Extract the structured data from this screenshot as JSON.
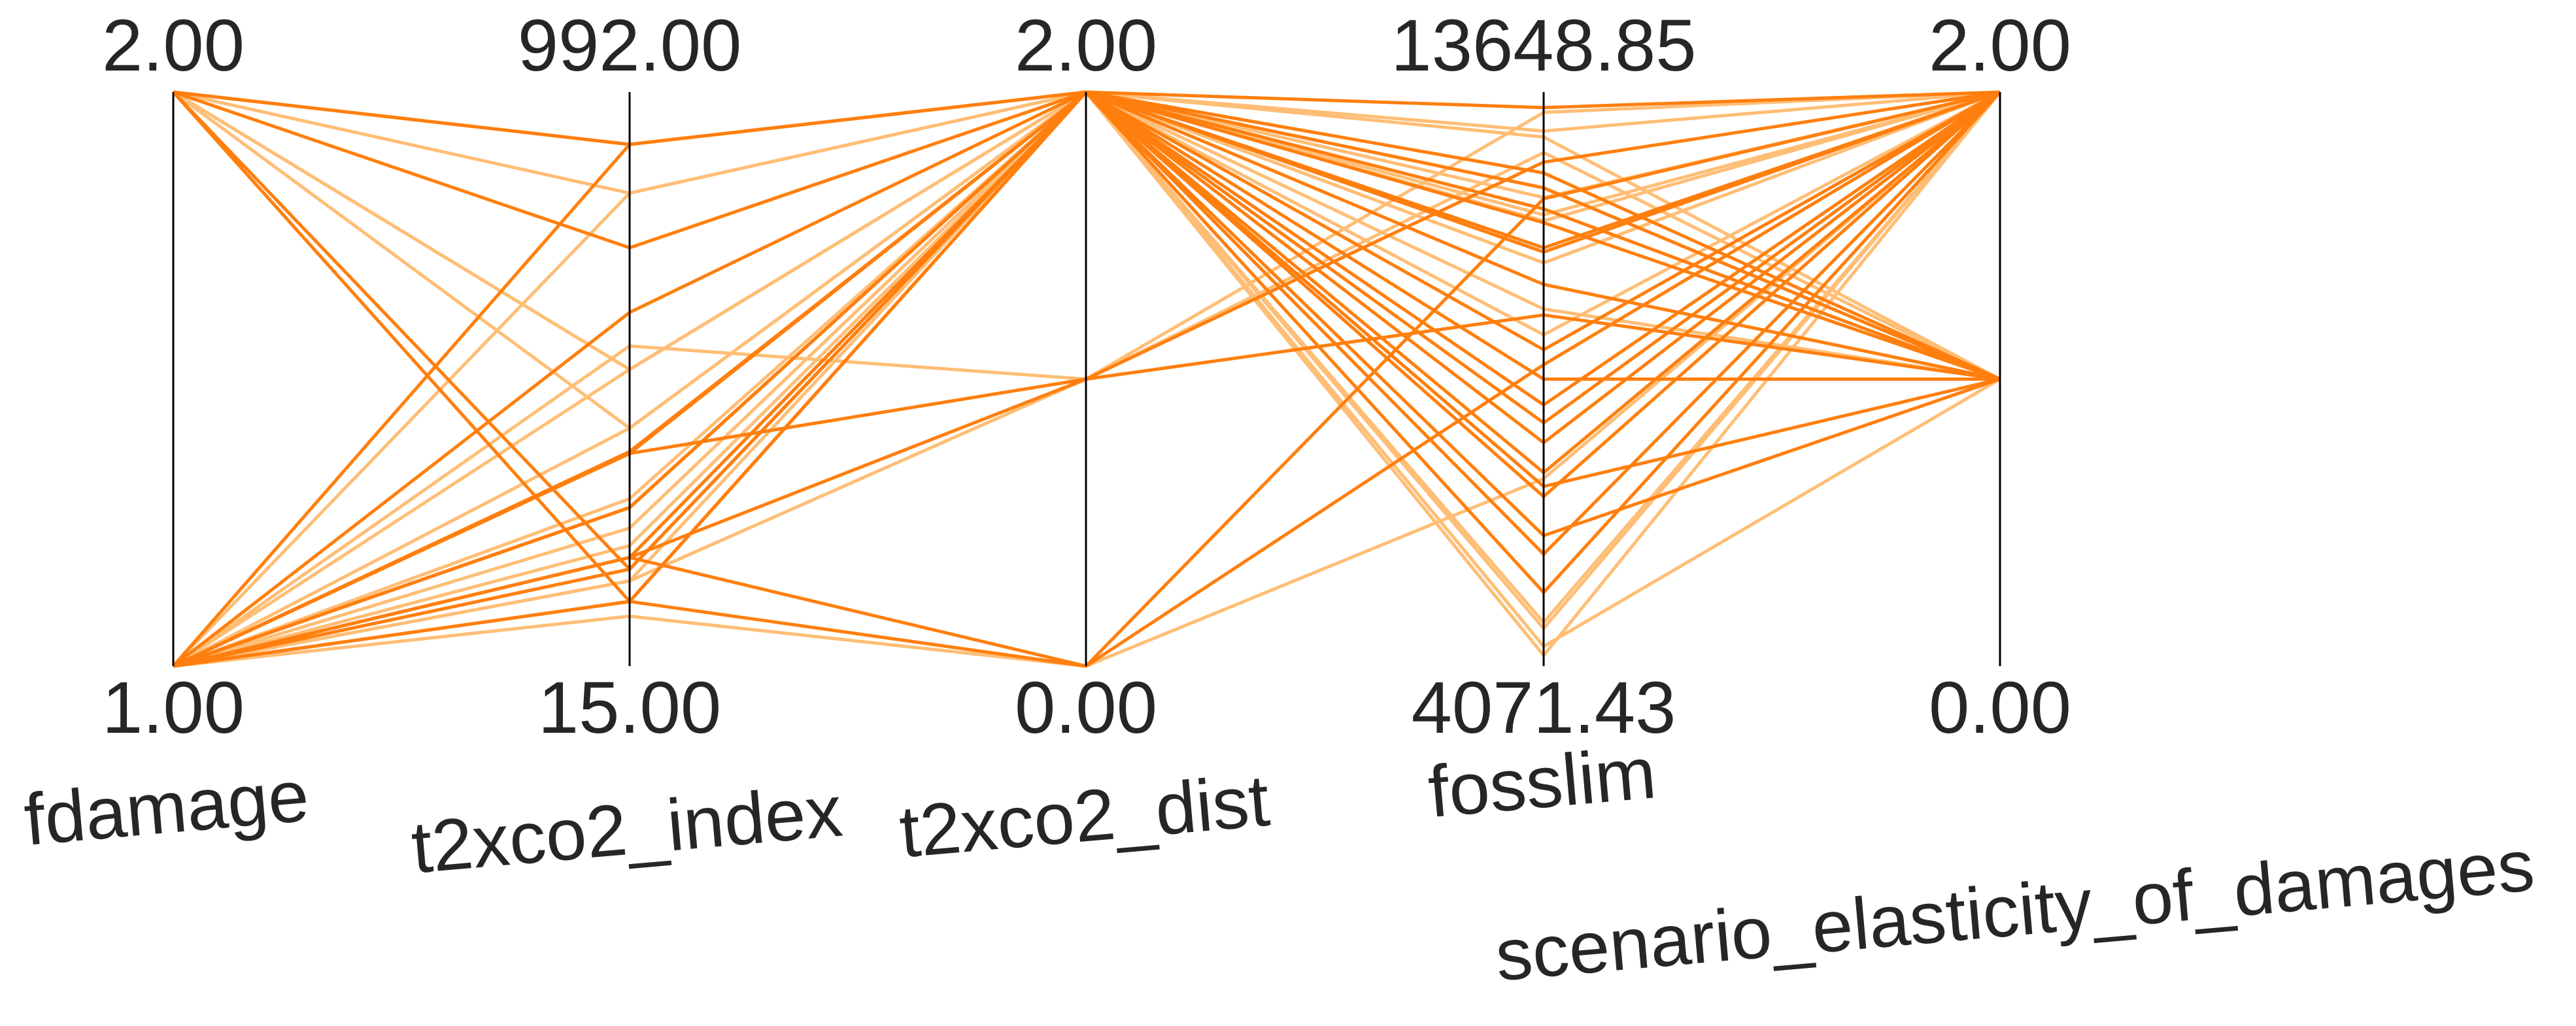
{
  "chart_data": {
    "type": "parallel_coordinates",
    "title": "",
    "axes": [
      {
        "name": "fdamage",
        "max": 2.0,
        "min": 1.0,
        "max_label": "2.00",
        "min_label": "1.00"
      },
      {
        "name": "t2xco2_index",
        "max": 992.0,
        "min": 15.0,
        "max_label": "992.00",
        "min_label": "15.00"
      },
      {
        "name": "t2xco2_dist",
        "max": 2.0,
        "min": 0.0,
        "max_label": "2.00",
        "min_label": "0.00"
      },
      {
        "name": "fosslim",
        "max": 13648.85,
        "min": 4071.43,
        "max_label": "13648.85",
        "min_label": "4071.43"
      },
      {
        "name": "scenario_elasticity_of_damages",
        "max": 2.0,
        "min": 0.0,
        "max_label": "2.00",
        "min_label": "0.00"
      }
    ],
    "colors": {
      "dark": "#ff7f0e",
      "light": "#ffbe76",
      "axis": "#000000",
      "text": "#262626"
    },
    "series": [
      {
        "shade": "dark",
        "values": [
          2,
          903,
          2,
          13390,
          2
        ]
      },
      {
        "shade": "dark",
        "values": [
          2,
          727,
          2,
          12050,
          1
        ]
      },
      {
        "shade": "dark",
        "values": [
          2,
          180,
          2,
          11700,
          1
        ]
      },
      {
        "shade": "dark",
        "values": [
          2,
          125,
          0,
          9100,
          2
        ]
      },
      {
        "shade": "dark",
        "values": [
          1,
          903,
          2,
          11050,
          2
        ]
      },
      {
        "shade": "dark",
        "values": [
          1,
          617,
          2,
          11470,
          1
        ]
      },
      {
        "shade": "dark",
        "values": [
          1,
          377,
          2,
          10980,
          2
        ]
      },
      {
        "shade": "dark",
        "values": [
          1,
          285,
          2,
          10440,
          1
        ]
      },
      {
        "shade": "dark",
        "values": [
          1,
          200,
          1,
          12480,
          2
        ]
      },
      {
        "shade": "dark",
        "values": [
          1,
          380,
          2,
          8860,
          1
        ]
      },
      {
        "shade": "dark",
        "values": [
          1,
          285,
          2,
          8430,
          2
        ]
      },
      {
        "shade": "dark",
        "values": [
          1,
          200,
          2,
          8130,
          2
        ]
      },
      {
        "shade": "dark",
        "values": [
          1,
          125,
          2,
          7800,
          2
        ]
      },
      {
        "shade": "dark",
        "values": [
          1,
          377,
          1,
          9930,
          1
        ]
      },
      {
        "shade": "dark",
        "values": [
          1,
          200,
          0,
          11870,
          2
        ]
      },
      {
        "shade": "dark",
        "values": [
          1,
          285,
          2,
          9350,
          2
        ]
      },
      {
        "shade": "dark",
        "values": [
          1,
          180,
          2,
          6250,
          1
        ]
      },
      {
        "shade": "dark",
        "values": [
          1,
          125,
          2,
          5940,
          2
        ]
      },
      {
        "shade": "dark",
        "values": [
          2,
          903,
          2,
          12300,
          1
        ]
      },
      {
        "shade": "dark",
        "values": [
          1,
          380,
          2,
          6900,
          2
        ]
      },
      {
        "shade": "dark",
        "values": [
          1,
          180,
          2,
          7070,
          1
        ]
      },
      {
        "shade": "dark",
        "values": [
          1,
          285,
          2,
          7300,
          2
        ]
      },
      {
        "shade": "dark",
        "values": [
          1,
          125,
          2,
          5300,
          2
        ]
      },
      {
        "shade": "light",
        "values": [
          2,
          420,
          2,
          11600,
          2
        ]
      },
      {
        "shade": "light",
        "values": [
          2,
          520,
          2,
          12900,
          1
        ]
      },
      {
        "shade": "light",
        "values": [
          1,
          820,
          2,
          13000,
          2
        ]
      },
      {
        "shade": "light",
        "values": [
          1,
          560,
          1,
          13310,
          2
        ]
      },
      {
        "shade": "light",
        "values": [
          1,
          520,
          2,
          11890,
          2
        ]
      },
      {
        "shade": "light",
        "values": [
          1,
          420,
          2,
          10030,
          1
        ]
      },
      {
        "shade": "light",
        "values": [
          1,
          250,
          2,
          9600,
          2
        ]
      },
      {
        "shade": "light",
        "values": [
          1,
          220,
          2,
          4800,
          2
        ]
      },
      {
        "shade": "light",
        "values": [
          1,
          160,
          1,
          12640,
          1
        ]
      },
      {
        "shade": "light",
        "values": [
          1,
          100,
          0,
          7200,
          2
        ]
      },
      {
        "shade": "light",
        "values": [
          2,
          820,
          2,
          4400,
          1
        ]
      },
      {
        "shade": "light",
        "values": [
          1,
          380,
          2,
          10800,
          2
        ]
      },
      {
        "shade": "light",
        "values": [
          1,
          300,
          2,
          11500,
          2
        ]
      },
      {
        "shade": "light",
        "values": [
          1,
          200,
          2,
          4700,
          2
        ]
      },
      {
        "shade": "light",
        "values": [
          1,
          160,
          2,
          4250,
          2
        ]
      },
      {
        "shade": "light",
        "values": [
          2,
          520,
          2,
          12050,
          1
        ]
      }
    ]
  }
}
